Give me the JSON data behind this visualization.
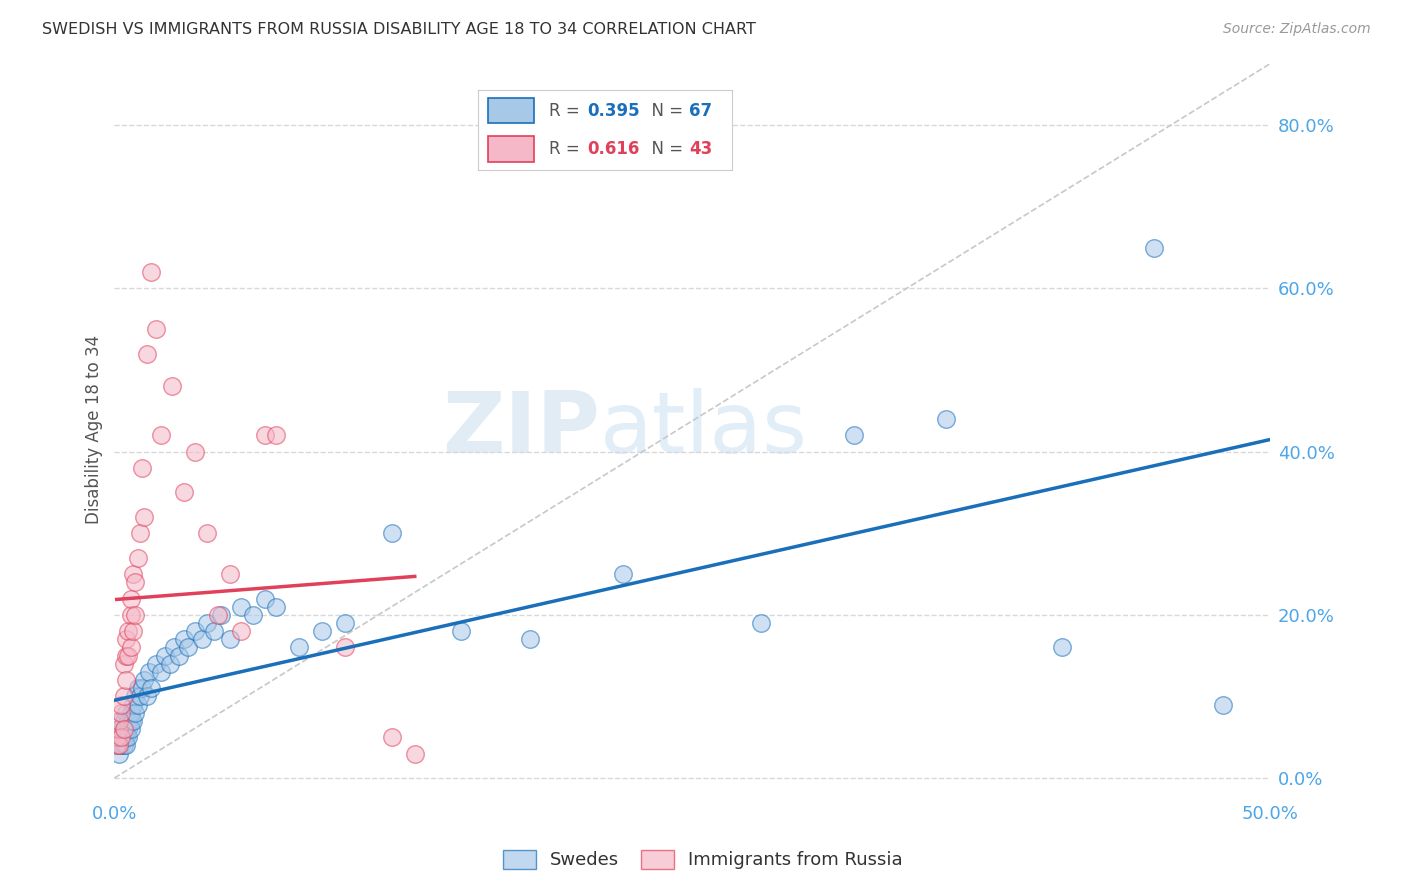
{
  "title": "SWEDISH VS IMMIGRANTS FROM RUSSIA DISABILITY AGE 18 TO 34 CORRELATION CHART",
  "source": "Source: ZipAtlas.com",
  "ylabel": "Disability Age 18 to 34",
  "xlim": [
    0.0,
    0.5
  ],
  "ylim": [
    -0.02,
    0.875
  ],
  "xticks": [
    0.0,
    0.5
  ],
  "xtick_labels": [
    "0.0%",
    "50.0%"
  ],
  "yticks_right": [
    0.0,
    0.2,
    0.4,
    0.6,
    0.8
  ],
  "ytick_labels_right": [
    "0.0%",
    "20.0%",
    "40.0%",
    "60.0%",
    "80.0%"
  ],
  "swedes_R": 0.395,
  "swedes_N": 67,
  "russia_R": 0.616,
  "russia_N": 43,
  "scatter_color_swedes": "#a8c8e8",
  "scatter_color_russia": "#f4b8c8",
  "trend_color_swedes": "#1a6fba",
  "trend_color_russia": "#e0405a",
  "ref_line_color": "#c8c8c8",
  "grid_color": "#d8d8d8",
  "axis_color": "#4da6e8",
  "title_color": "#333333",
  "watermark_zip": "ZIP",
  "watermark_atlas": "atlas",
  "swedes_x": [
    0.001,
    0.001,
    0.002,
    0.002,
    0.002,
    0.002,
    0.003,
    0.003,
    0.003,
    0.003,
    0.004,
    0.004,
    0.004,
    0.004,
    0.005,
    0.005,
    0.005,
    0.005,
    0.006,
    0.006,
    0.006,
    0.007,
    0.007,
    0.007,
    0.008,
    0.008,
    0.009,
    0.009,
    0.01,
    0.01,
    0.011,
    0.012,
    0.013,
    0.014,
    0.015,
    0.016,
    0.018,
    0.02,
    0.022,
    0.024,
    0.026,
    0.028,
    0.03,
    0.032,
    0.035,
    0.038,
    0.04,
    0.043,
    0.046,
    0.05,
    0.055,
    0.06,
    0.065,
    0.07,
    0.08,
    0.09,
    0.1,
    0.12,
    0.15,
    0.18,
    0.22,
    0.28,
    0.32,
    0.36,
    0.41,
    0.45,
    0.48
  ],
  "swedes_y": [
    0.04,
    0.05,
    0.03,
    0.05,
    0.06,
    0.04,
    0.05,
    0.06,
    0.04,
    0.07,
    0.05,
    0.06,
    0.04,
    0.07,
    0.05,
    0.06,
    0.08,
    0.04,
    0.06,
    0.07,
    0.05,
    0.07,
    0.08,
    0.06,
    0.07,
    0.09,
    0.08,
    0.1,
    0.09,
    0.11,
    0.1,
    0.11,
    0.12,
    0.1,
    0.13,
    0.11,
    0.14,
    0.13,
    0.15,
    0.14,
    0.16,
    0.15,
    0.17,
    0.16,
    0.18,
    0.17,
    0.19,
    0.18,
    0.2,
    0.17,
    0.21,
    0.2,
    0.22,
    0.21,
    0.16,
    0.18,
    0.19,
    0.3,
    0.18,
    0.17,
    0.25,
    0.19,
    0.42,
    0.44,
    0.16,
    0.65,
    0.09
  ],
  "russia_x": [
    0.001,
    0.001,
    0.002,
    0.002,
    0.002,
    0.003,
    0.003,
    0.003,
    0.004,
    0.004,
    0.004,
    0.005,
    0.005,
    0.005,
    0.006,
    0.006,
    0.007,
    0.007,
    0.007,
    0.008,
    0.008,
    0.009,
    0.009,
    0.01,
    0.011,
    0.012,
    0.013,
    0.014,
    0.016,
    0.018,
    0.02,
    0.025,
    0.03,
    0.035,
    0.04,
    0.045,
    0.05,
    0.055,
    0.065,
    0.07,
    0.1,
    0.12,
    0.13
  ],
  "russia_y": [
    0.04,
    0.05,
    0.04,
    0.06,
    0.07,
    0.05,
    0.08,
    0.09,
    0.06,
    0.1,
    0.14,
    0.12,
    0.15,
    0.17,
    0.15,
    0.18,
    0.16,
    0.2,
    0.22,
    0.18,
    0.25,
    0.2,
    0.24,
    0.27,
    0.3,
    0.38,
    0.32,
    0.52,
    0.62,
    0.55,
    0.42,
    0.48,
    0.35,
    0.4,
    0.3,
    0.2,
    0.25,
    0.18,
    0.42,
    0.42,
    0.16,
    0.05,
    0.03
  ]
}
